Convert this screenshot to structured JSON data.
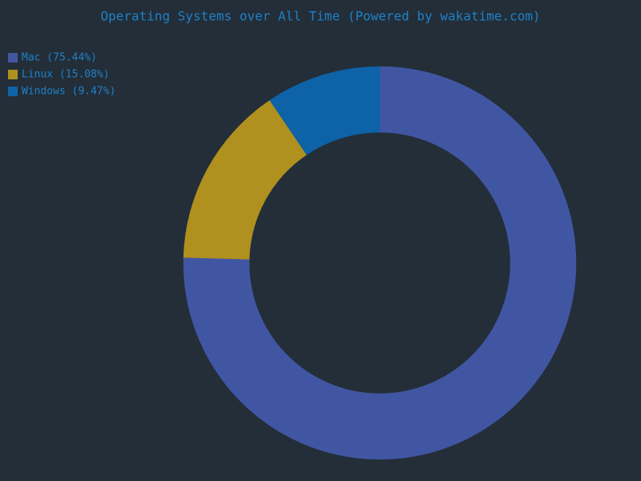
{
  "chart_data": {
    "type": "donut",
    "title": "Operating Systems over All Time (Powered by wakatime.com)",
    "categories": [
      "Mac (75.44%)",
      "Linux (15.08%)",
      "Windows (9.47%)"
    ],
    "values": [
      75.44,
      15.08,
      9.47
    ],
    "colors": [
      "#4156a3",
      "#b0901f",
      "#0e63a8"
    ],
    "legend": "upper-left"
  }
}
